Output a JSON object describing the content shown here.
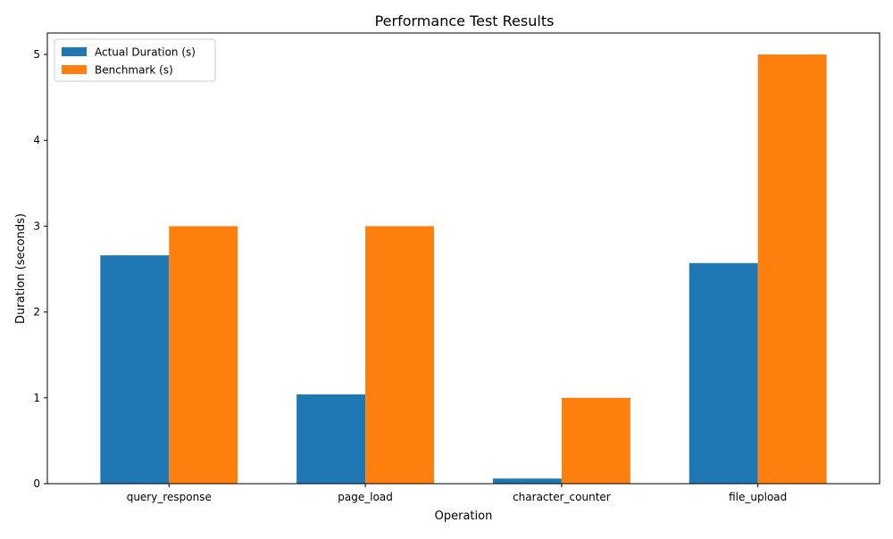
{
  "chart_data": {
    "type": "bar",
    "title": "Performance Test Results",
    "xlabel": "Operation",
    "ylabel": "Duration (seconds)",
    "categories": [
      "query_response",
      "page_load",
      "character_counter",
      "file_upload"
    ],
    "series": [
      {
        "name": "Actual Duration (s)",
        "color": "#1f77b4",
        "values": [
          2.66,
          1.04,
          0.06,
          2.57
        ]
      },
      {
        "name": "Benchmark (s)",
        "color": "#ff7f0e",
        "values": [
          3.0,
          3.0,
          1.0,
          5.0
        ]
      }
    ],
    "ylim": [
      0,
      5.25
    ],
    "yticks": [
      0,
      1,
      2,
      3,
      4,
      5
    ],
    "grid": false,
    "legend": "top-left"
  }
}
